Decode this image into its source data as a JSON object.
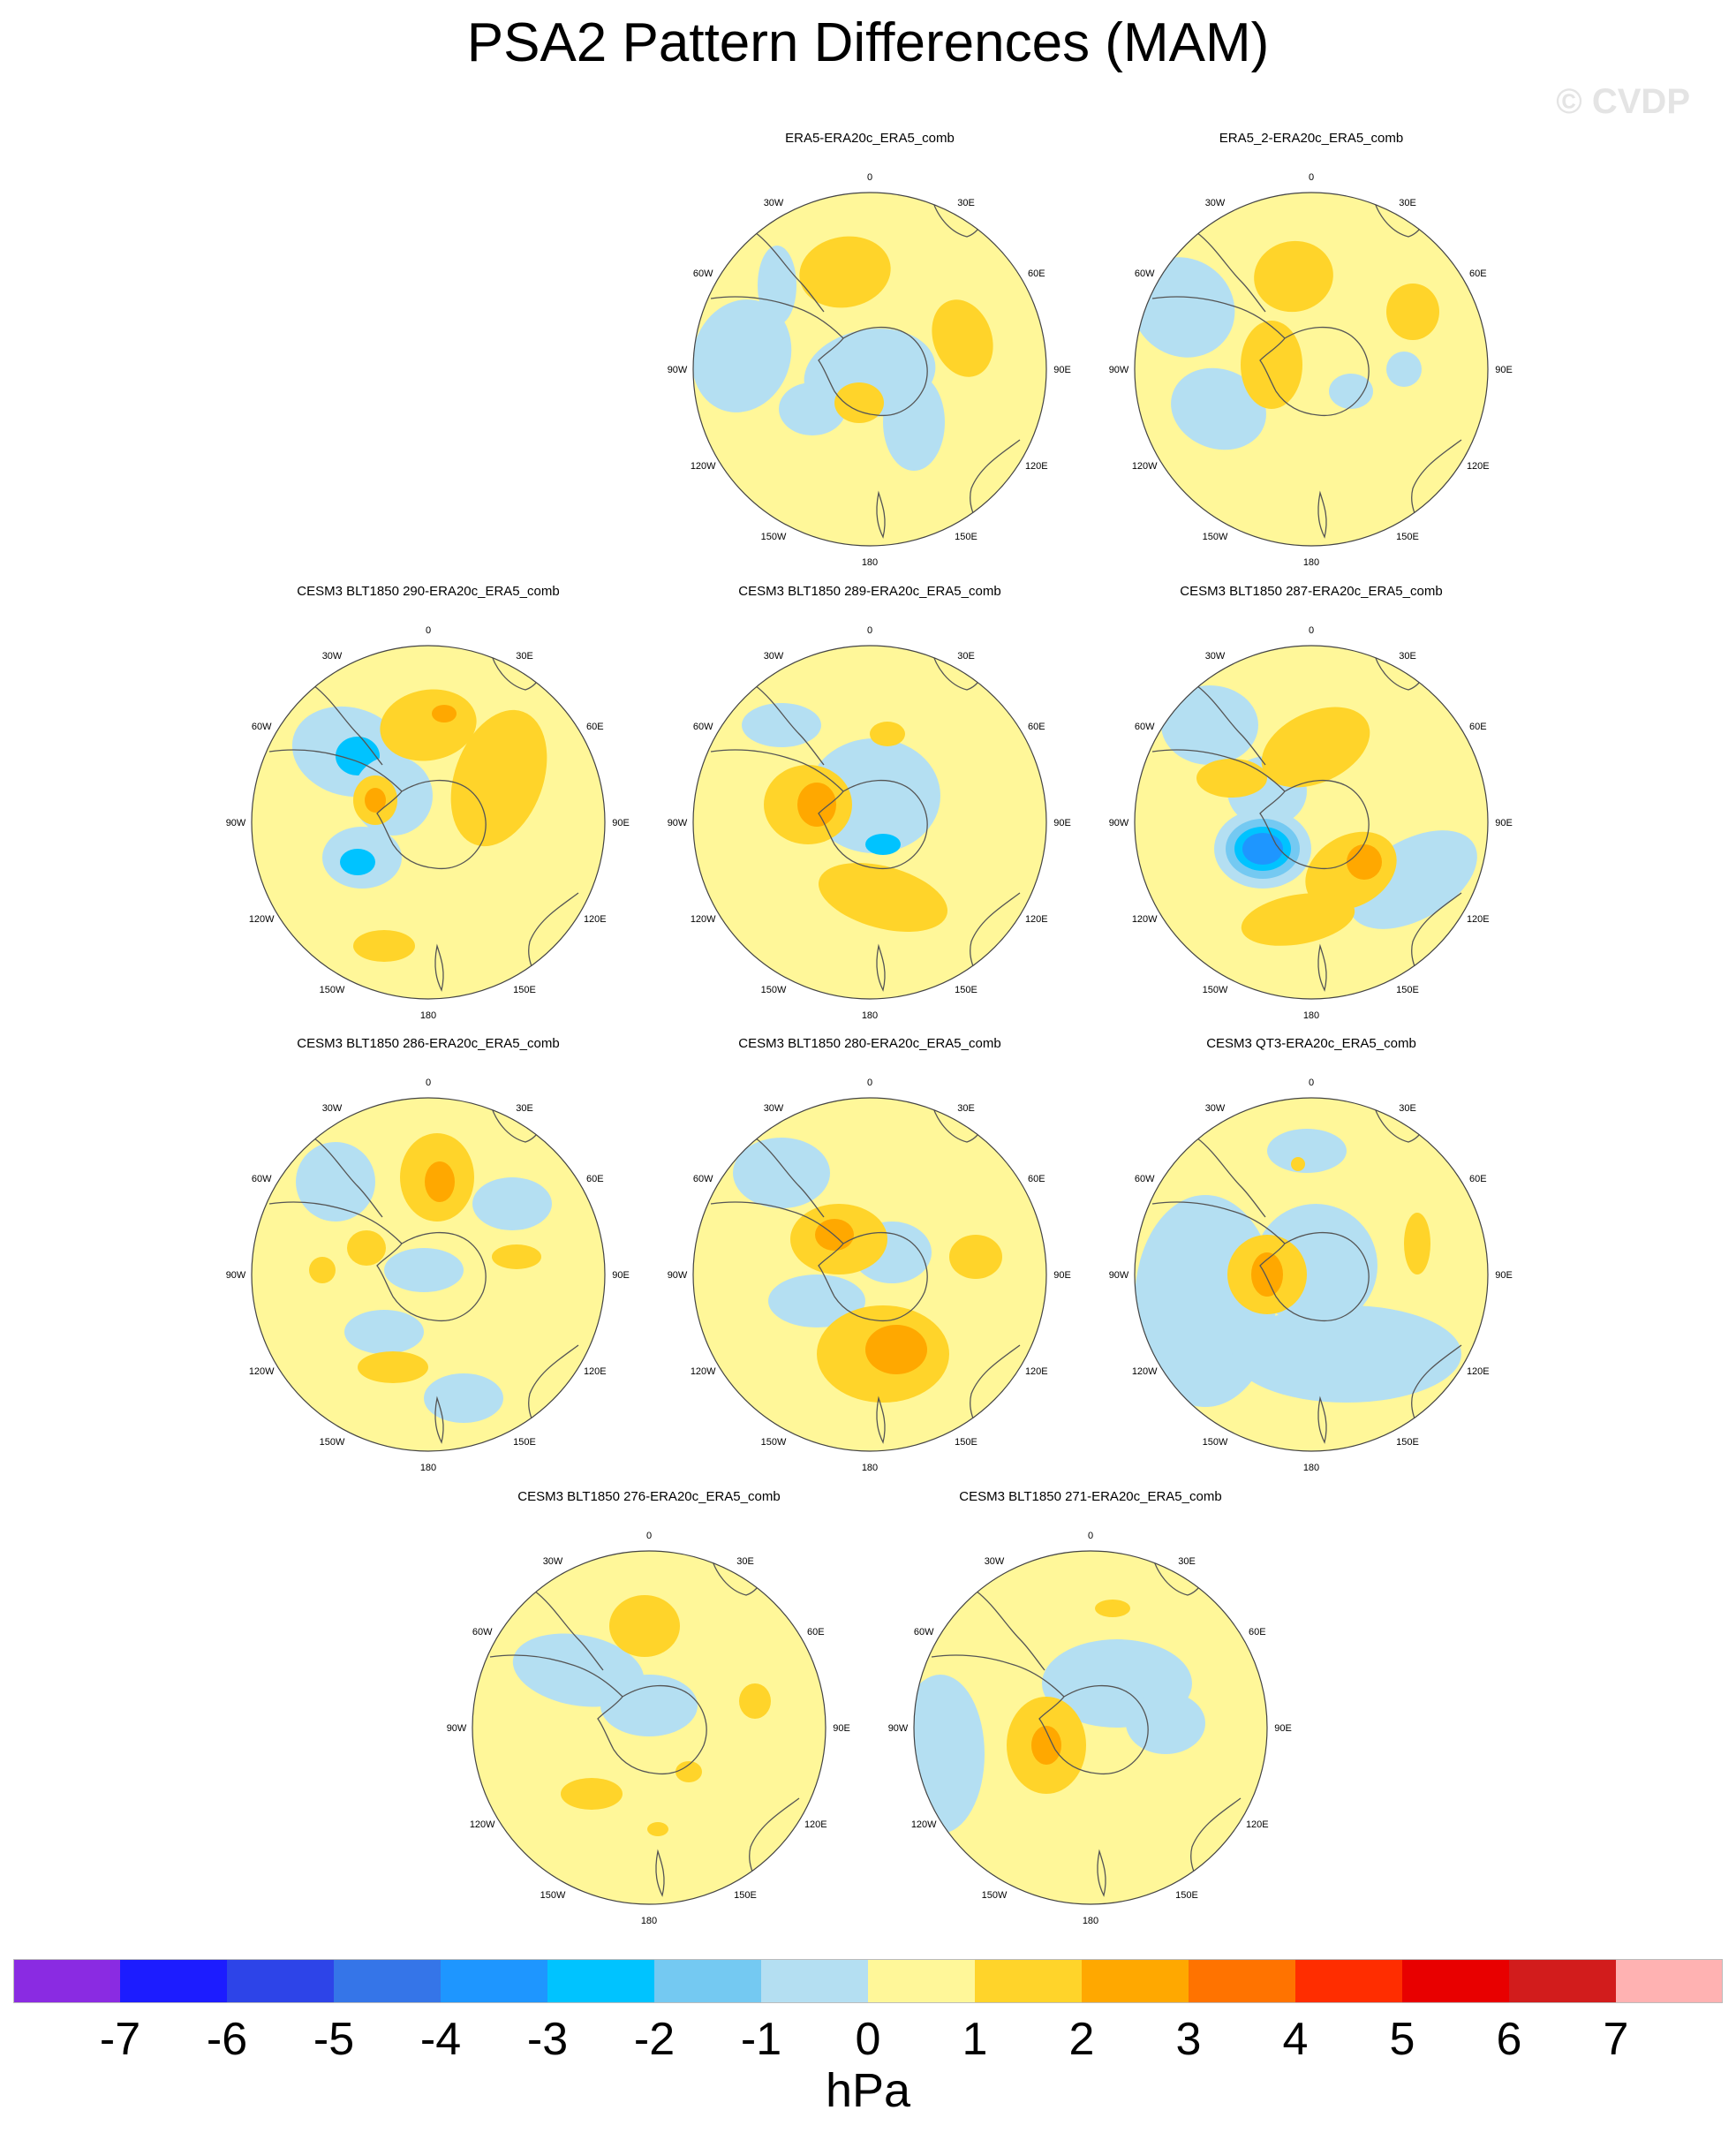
{
  "title": "PSA2 Pattern Differences (MAM)",
  "watermark": "© CVDP",
  "units": "hPa",
  "longitude_labels": [
    "0",
    "30E",
    "60E",
    "90E",
    "120E",
    "150E",
    "180",
    "150W",
    "120W",
    "90W",
    "60W",
    "30W"
  ],
  "colorbar": {
    "ticks": [
      "-7",
      "-6",
      "-5",
      "-4",
      "-3",
      "-2",
      "-1",
      "0",
      "1",
      "2",
      "3",
      "4",
      "5",
      "6",
      "7"
    ],
    "colors": [
      "#8a2be2",
      "#1c1cff",
      "#2d44e8",
      "#3575e8",
      "#1e96ff",
      "#00c3ff",
      "#74c9f2",
      "#b4dff2",
      "#fff799",
      "#ffd42a",
      "#ffa800",
      "#ff7300",
      "#ff2d00",
      "#e80000",
      "#d21c1c",
      "#ffb2b2"
    ]
  },
  "panels": [
    {
      "id": "era5",
      "title": "ERA5-ERA20c_ERA5_comb"
    },
    {
      "id": "era5_2",
      "title": "ERA5_2-ERA20c_ERA5_comb"
    },
    {
      "id": "m290",
      "title": "CESM3 BLT1850 290-ERA20c_ERA5_comb"
    },
    {
      "id": "m289",
      "title": "CESM3 BLT1850 289-ERA20c_ERA5_comb"
    },
    {
      "id": "m287",
      "title": "CESM3 BLT1850 287-ERA20c_ERA5_comb"
    },
    {
      "id": "m286",
      "title": "CESM3 BLT1850 286-ERA20c_ERA5_comb"
    },
    {
      "id": "m280",
      "title": "CESM3 BLT1850 280-ERA20c_ERA5_comb"
    },
    {
      "id": "qt3",
      "title": "CESM3 QT3-ERA20c_ERA5_comb"
    },
    {
      "id": "m276",
      "title": "CESM3 BLT1850 276-ERA20c_ERA5_comb"
    },
    {
      "id": "m271",
      "title": "CESM3 BLT1850 271-ERA20c_ERA5_comb"
    }
  ]
}
